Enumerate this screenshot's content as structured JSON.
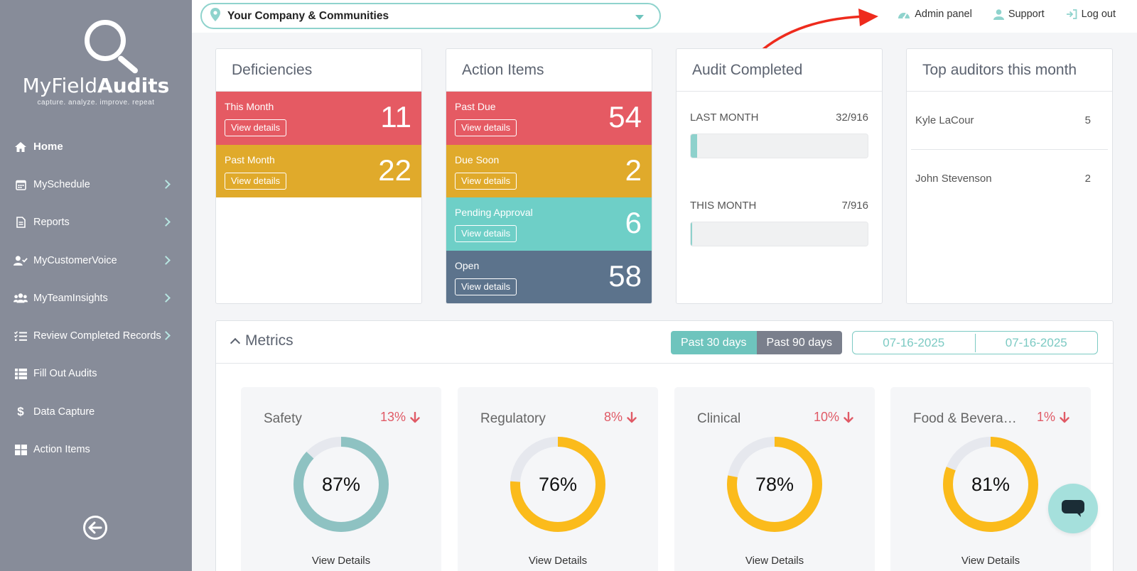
{
  "brand": {
    "name_light": "MyField",
    "name_bold": "Audits",
    "tagline": "capture. analyze. improve. repeat"
  },
  "sidebar": {
    "items": [
      {
        "label": "Home",
        "icon": "home-icon",
        "active": true,
        "has_submenu": false
      },
      {
        "label": "MySchedule",
        "icon": "calendar-icon",
        "active": false,
        "has_submenu": true
      },
      {
        "label": "Reports",
        "icon": "document-icon",
        "active": false,
        "has_submenu": true
      },
      {
        "label": "MyCustomerVoice",
        "icon": "user-check-icon",
        "active": false,
        "has_submenu": true
      },
      {
        "label": "MyTeamInsights",
        "icon": "users-icon",
        "active": false,
        "has_submenu": true
      },
      {
        "label": "Review Completed Records",
        "icon": "checklist-icon",
        "active": false,
        "has_submenu": true
      },
      {
        "label": "Fill Out Audits",
        "icon": "list-grid-icon",
        "active": false,
        "has_submenu": false
      },
      {
        "label": "Data Capture",
        "icon": "dollar-icon",
        "active": false,
        "has_submenu": false
      },
      {
        "label": "Action Items",
        "icon": "grid-icon",
        "active": false,
        "has_submenu": false
      }
    ]
  },
  "topbar": {
    "company": "Your Company & Communities",
    "links": {
      "admin": "Admin panel",
      "support": "Support",
      "logout": "Log out"
    }
  },
  "deficiencies": {
    "title": "Deficiencies",
    "rows": [
      {
        "label": "This Month",
        "value": "11",
        "button": "View details",
        "color": "#e55a63"
      },
      {
        "label": "Past Month",
        "value": "22",
        "button": "View details",
        "color": "#e0aa2b"
      }
    ]
  },
  "action_items": {
    "title": "Action Items",
    "rows": [
      {
        "label": "Past Due",
        "value": "54",
        "button": "View details",
        "color": "#e55a63"
      },
      {
        "label": "Due Soon",
        "value": "2",
        "button": "View details",
        "color": "#e0aa2b"
      },
      {
        "label": "Pending Approval",
        "value": "6",
        "button": "View details",
        "color": "#6ecfc7"
      },
      {
        "label": "Open",
        "value": "58",
        "button": "View details",
        "color": "#5c738c"
      }
    ]
  },
  "audit_completed": {
    "title": "Audit Completed",
    "rows": [
      {
        "label": "LAST MONTH",
        "value": "32/916",
        "fraction": 0.035
      },
      {
        "label": "THIS MONTH",
        "value": "7/916",
        "fraction": 0.008
      }
    ]
  },
  "top_auditors": {
    "title": "Top auditors this month",
    "rows": [
      {
        "name": "Kyle LaCour",
        "count": "5"
      },
      {
        "name": "John Stevenson",
        "count": "2"
      }
    ]
  },
  "metrics": {
    "title": "Metrics",
    "range_active": "Past 30 days",
    "range_inactive": "Past 90 days",
    "date_from": "07-16-2025",
    "date_to": "07-16-2025",
    "cards": [
      {
        "name": "Safety",
        "change": "13%",
        "percent": 87,
        "value": "87%",
        "color": "#8ec2c2",
        "link": "View Details"
      },
      {
        "name": "Regulatory",
        "change": "8%",
        "percent": 76,
        "value": "76%",
        "color": "#fbbb1b",
        "link": "View Details"
      },
      {
        "name": "Clinical",
        "change": "10%",
        "percent": 78,
        "value": "78%",
        "color": "#fbbb1b",
        "link": "View Details"
      },
      {
        "name": "Food & Bevera…",
        "change": "1%",
        "percent": 81,
        "value": "81%",
        "color": "#fbbb1b",
        "link": "View Details"
      }
    ],
    "change_color": "#e05a66"
  },
  "chat": {
    "icon": "chat-icon"
  }
}
